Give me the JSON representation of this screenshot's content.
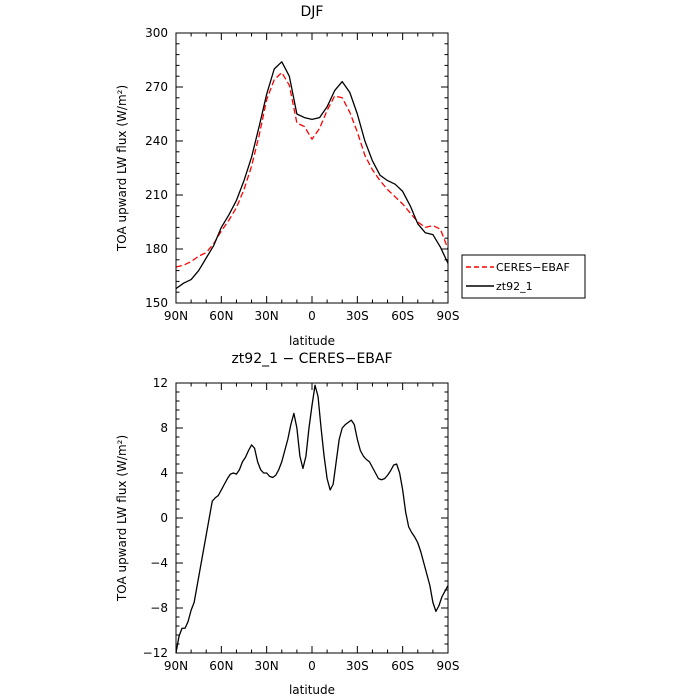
{
  "chart_data": [
    {
      "type": "line",
      "title": "DJF",
      "xlabel": "latitude",
      "ylabel": "TOA upward LW flux (W/m²)",
      "xlim": [
        90,
        -90
      ],
      "ylim": [
        150,
        300
      ],
      "xticks": [
        90,
        60,
        30,
        0,
        -30,
        -60,
        -90
      ],
      "xtick_labels": [
        "90N",
        "60N",
        "30N",
        "0",
        "30S",
        "60S",
        "90S"
      ],
      "yticks": [
        150,
        180,
        210,
        240,
        270,
        300
      ],
      "ytick_labels": [
        "150",
        "180",
        "210",
        "240",
        "270",
        "300"
      ],
      "legend_position": "outside-right-bottom",
      "series": [
        {
          "name": "CERES−EBAF",
          "color": "#ff0000",
          "style": "dashed",
          "x": [
            90,
            85,
            80,
            75,
            70,
            65,
            60,
            55,
            50,
            45,
            40,
            35,
            30,
            25,
            20,
            15,
            10,
            5,
            0,
            -5,
            -10,
            -15,
            -20,
            -25,
            -30,
            -35,
            -40,
            -45,
            -50,
            -55,
            -60,
            -65,
            -70,
            -75,
            -80,
            -85,
            -90
          ],
          "y": [
            170,
            171,
            173,
            176,
            178,
            183,
            190,
            196,
            203,
            213,
            226,
            243,
            263,
            274,
            278,
            271,
            250,
            248,
            241,
            247,
            257,
            265,
            264,
            256,
            245,
            232,
            224,
            218,
            213,
            209,
            205,
            200,
            195,
            192,
            193,
            191,
            180
          ]
        },
        {
          "name": "zt92_1",
          "color": "#000000",
          "style": "solid",
          "x": [
            90,
            85,
            80,
            75,
            70,
            65,
            60,
            55,
            50,
            45,
            40,
            35,
            30,
            25,
            20,
            15,
            10,
            5,
            0,
            -5,
            -10,
            -15,
            -20,
            -25,
            -30,
            -35,
            -40,
            -45,
            -50,
            -55,
            -60,
            -65,
            -70,
            -75,
            -80,
            -85,
            -90
          ],
          "y": [
            158,
            161,
            163,
            168,
            175,
            182,
            192,
            199,
            207,
            218,
            231,
            248,
            266,
            280,
            284,
            276,
            255,
            253,
            252,
            253,
            259,
            268,
            273,
            267,
            255,
            240,
            229,
            221,
            218,
            216,
            212,
            204,
            194,
            189,
            188,
            181,
            172
          ]
        }
      ]
    },
    {
      "type": "line",
      "title": "zt92_1 − CERES−EBAF",
      "xlabel": "latitude",
      "ylabel": "TOA upward LW flux (W/m²)",
      "xlim": [
        90,
        -90
      ],
      "ylim": [
        -12,
        12
      ],
      "xticks": [
        90,
        60,
        30,
        0,
        -30,
        -60,
        -90
      ],
      "xtick_labels": [
        "90N",
        "60N",
        "30N",
        "0",
        "30S",
        "60S",
        "90S"
      ],
      "yticks": [
        -12,
        -8,
        -4,
        0,
        4,
        8,
        12
      ],
      "ytick_labels": [
        "−12",
        "−8",
        "−4",
        "0",
        "4",
        "8",
        "12"
      ],
      "series": [
        {
          "color": "#000000",
          "style": "solid",
          "x": [
            90,
            88,
            86,
            84,
            82,
            80,
            78,
            76,
            74,
            72,
            70,
            68,
            66,
            64,
            62,
            60,
            58,
            56,
            54,
            52,
            50,
            48,
            46,
            44,
            42,
            40,
            38,
            36,
            34,
            32,
            30,
            28,
            26,
            24,
            22,
            20,
            18,
            16,
            14,
            12,
            10,
            8,
            6,
            4,
            2,
            0,
            -2,
            -4,
            -6,
            -8,
            -10,
            -12,
            -14,
            -16,
            -18,
            -20,
            -22,
            -24,
            -26,
            -28,
            -30,
            -32,
            -34,
            -36,
            -38,
            -40,
            -42,
            -44,
            -46,
            -48,
            -50,
            -52,
            -54,
            -56,
            -58,
            -60,
            -62,
            -64,
            -66,
            -68,
            -70,
            -72,
            -74,
            -76,
            -78,
            -80,
            -82,
            -84,
            -86,
            -88,
            -90
          ],
          "y": [
            -12,
            -10.5,
            -9.8,
            -9.8,
            -9.2,
            -8.2,
            -7.5,
            -6.0,
            -4.5,
            -3.0,
            -1.5,
            0,
            1.5,
            1.8,
            2.0,
            2.5,
            3.0,
            3.5,
            3.9,
            4.0,
            3.9,
            4.3,
            5.0,
            5.4,
            6.0,
            6.5,
            6.2,
            5.0,
            4.3,
            4.0,
            4.0,
            3.7,
            3.6,
            3.8,
            4.3,
            5.0,
            6.0,
            7.0,
            8.3,
            9.3,
            8.0,
            5.5,
            4.4,
            5.5,
            8.0,
            10.0,
            11.8,
            10.8,
            8.0,
            5.5,
            3.5,
            2.5,
            3.0,
            5.0,
            7.0,
            8.0,
            8.3,
            8.5,
            8.7,
            8.3,
            7.0,
            6.0,
            5.5,
            5.2,
            5.0,
            4.5,
            4.0,
            3.5,
            3.4,
            3.5,
            3.8,
            4.2,
            4.7,
            4.8,
            4.0,
            2.5,
            0.5,
            -0.8,
            -1.3,
            -1.7,
            -2.2,
            -3.0,
            -4.0,
            -5.0,
            -6.0,
            -7.5,
            -8.3,
            -7.8,
            -7.0,
            -6.5,
            -6.0
          ]
        }
      ]
    }
  ]
}
